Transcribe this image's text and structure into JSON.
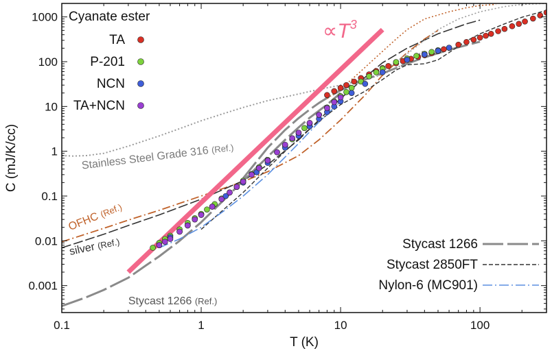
{
  "chart_data": {
    "type": "scatter",
    "title": "",
    "xlabel": "T  (K)",
    "ylabel": "C  (mJ/K/cc)",
    "xscale": "log",
    "yscale": "log",
    "xlim": [
      0.1,
      300
    ],
    "ylim": [
      0.00025,
      2000
    ],
    "x_ticks": [
      {
        "value": 0.1,
        "label": "0.1"
      },
      {
        "value": 1,
        "label": "1"
      },
      {
        "value": 10,
        "label": "10"
      },
      {
        "value": 100,
        "label": "100"
      }
    ],
    "y_ticks": [
      {
        "value": 0.001,
        "label": "0.001"
      },
      {
        "value": 0.01,
        "label": "0.01"
      },
      {
        "value": 0.1,
        "label": "0.1"
      },
      {
        "value": 1,
        "label": "1"
      },
      {
        "value": 10,
        "label": "10"
      },
      {
        "value": 100,
        "label": "100"
      },
      {
        "value": 1000,
        "label": "1000"
      }
    ],
    "legend_title": "Cyanate ester",
    "legend_placement": "top-left",
    "scatter_series": [
      {
        "name": "TA",
        "color": "#d93025",
        "x": [
          8,
          9,
          10,
          11,
          12.5,
          14,
          16,
          18,
          20,
          22,
          25,
          28,
          32,
          36,
          40,
          45,
          50,
          55,
          60,
          70,
          80,
          90,
          100,
          110,
          120,
          135,
          150,
          170,
          190,
          210,
          240,
          270,
          300
        ],
        "y": [
          18,
          22,
          26,
          30,
          36,
          43,
          52,
          62,
          72,
          80,
          92,
          103,
          116,
          128,
          140,
          155,
          172,
          190,
          205,
          240,
          275,
          310,
          345,
          380,
          420,
          480,
          540,
          620,
          700,
          790,
          920,
          1080,
          1250
        ]
      },
      {
        "name": "P-201",
        "color": "#7dd23c",
        "x": [
          0.45,
          0.5,
          0.55,
          0.6,
          0.7,
          0.8,
          0.9,
          1,
          1.1,
          1.25,
          1.4,
          1.6,
          1.8,
          2,
          2.3,
          2.6,
          3,
          3.5,
          4,
          4.5,
          5,
          5.5,
          6,
          7,
          8,
          9,
          10,
          11,
          12,
          14,
          16,
          18,
          20,
          25,
          30,
          35,
          40,
          45,
          50
        ],
        "y": [
          0.007,
          0.009,
          0.011,
          0.013,
          0.018,
          0.025,
          0.032,
          0.04,
          0.05,
          0.066,
          0.088,
          0.12,
          0.16,
          0.22,
          0.31,
          0.44,
          0.64,
          0.95,
          1.35,
          1.85,
          2.5,
          3.3,
          4.2,
          6.5,
          9.5,
          13,
          17,
          21,
          26,
          36,
          47,
          58,
          70,
          98,
          118,
          135,
          150,
          165,
          180
        ]
      },
      {
        "name": "NCN",
        "color": "#3f5ed8",
        "x": [
          0.5,
          0.6,
          0.7,
          0.8,
          1,
          1.2,
          1.5,
          2,
          2.5,
          3,
          4,
          5,
          6,
          7,
          8,
          9,
          10,
          12,
          15,
          20,
          30,
          40,
          50,
          60
        ],
        "y": [
          0.008,
          0.012,
          0.016,
          0.022,
          0.038,
          0.058,
          0.1,
          0.2,
          0.34,
          0.55,
          1.2,
          2.2,
          3.6,
          5.3,
          7.5,
          10,
          13,
          20,
          32,
          58,
          110,
          145,
          175,
          205
        ]
      },
      {
        "name": "TA+NCN",
        "color": "#9a3fd2",
        "x": [
          0.5,
          0.55,
          0.6,
          0.7,
          0.8,
          0.9,
          1,
          1.2,
          1.4,
          1.6,
          1.8,
          2,
          2.3,
          2.6,
          3,
          3.5,
          4,
          4.5,
          5,
          6,
          7,
          8,
          9,
          10
        ],
        "y": [
          0.008,
          0.0095,
          0.011,
          0.016,
          0.022,
          0.03,
          0.038,
          0.058,
          0.085,
          0.12,
          0.16,
          0.21,
          0.3,
          0.42,
          0.62,
          0.95,
          1.4,
          1.95,
          2.6,
          4.3,
          6.5,
          9.2,
          12.5,
          16
        ]
      }
    ],
    "line_series": [
      {
        "name": "Stainless Steel Grade 316",
        "color": "#9a9a9a",
        "dash": "2,3",
        "width": 2,
        "x": [
          0.1,
          0.12,
          0.15,
          0.2,
          0.3,
          0.5,
          0.7,
          1,
          1.5,
          2,
          3,
          5,
          7,
          10,
          15,
          20,
          30,
          40
        ],
        "y": [
          0.8,
          0.78,
          0.8,
          0.9,
          1.3,
          2.2,
          3.2,
          4.8,
          7.2,
          9.5,
          13.5,
          19,
          24,
          30,
          40,
          52,
          95,
          180
        ]
      },
      {
        "name": "OFHC",
        "color": "#c0622a",
        "dash": "12,4,2,4",
        "width": 1.8,
        "x": [
          0.1,
          0.2,
          0.3,
          0.5,
          1,
          2,
          3,
          5,
          7,
          10,
          15,
          20,
          30,
          40,
          50
        ],
        "y": [
          0.0095,
          0.019,
          0.029,
          0.048,
          0.1,
          0.21,
          0.35,
          0.8,
          1.8,
          5,
          18,
          50,
          160,
          320,
          500
        ]
      },
      {
        "name": "silver",
        "color": "#333333",
        "dash": "14,4",
        "width": 1.6,
        "x": [
          0.1,
          0.2,
          0.3,
          0.5,
          1,
          2,
          3,
          5,
          7,
          10,
          15,
          20,
          30,
          50,
          80,
          100
        ],
        "y": [
          0.007,
          0.014,
          0.022,
          0.038,
          0.085,
          0.22,
          0.5,
          1.8,
          5,
          15,
          45,
          95,
          200,
          420,
          700,
          850
        ]
      },
      {
        "name": "Stycast 1266 (Ref.)",
        "color": "#8a8a8a",
        "dash": "32,6",
        "width": 3,
        "x": [
          0.1,
          0.15,
          0.2,
          0.3,
          0.4,
          0.5,
          0.7,
          1,
          1.5,
          2,
          3,
          4,
          5,
          6,
          8,
          10
        ],
        "y": [
          0.00035,
          0.00055,
          0.0008,
          0.0015,
          0.0028,
          0.0045,
          0.01,
          0.026,
          0.09,
          0.22,
          0.75,
          1.8,
          3.4,
          5.6,
          11,
          20
        ]
      },
      {
        "name": "Stycast 1266",
        "color": "#8a8a8a",
        "dash": "30,6",
        "width": 3,
        "x": [
          2,
          3,
          4,
          5,
          6,
          7,
          8,
          10,
          12,
          15,
          20,
          30,
          40,
          50,
          70,
          100
        ],
        "y": [
          0.25,
          1.2,
          3,
          5.5,
          8.5,
          12,
          15.5,
          23,
          30,
          40,
          55,
          90,
          125,
          155,
          210,
          280
        ]
      },
      {
        "name": "Stycast 2850FT",
        "color": "#333333",
        "dash": "6,3",
        "width": 1.4,
        "x": [
          1,
          1.5,
          2,
          3,
          4,
          5,
          6,
          8,
          10,
          12,
          15,
          20,
          25,
          30,
          40,
          50,
          60,
          80,
          100,
          150,
          200,
          300
        ],
        "y": [
          0.018,
          0.055,
          0.12,
          0.42,
          1,
          1.9,
          3.2,
          6.5,
          11,
          15,
          22,
          40,
          65,
          85,
          90,
          110,
          160,
          290,
          420,
          700,
          980,
          1400
        ]
      },
      {
        "name": "Nylon-6 (MC901)",
        "color": "#5b8fe0",
        "dash": "14,4,2,4",
        "width": 1.6,
        "x": [
          0.5,
          0.7,
          1,
          1.5,
          2,
          3,
          5,
          7,
          10
        ],
        "y": [
          0.007,
          0.011,
          0.02,
          0.05,
          0.1,
          0.3,
          1.5,
          4.5,
          13
        ]
      },
      {
        "name": "upper dotted",
        "color": "#c0622a",
        "dash": "2,3",
        "width": 1.6,
        "x": [
          8,
          10,
          12,
          15,
          20,
          25,
          30,
          40,
          60,
          80,
          100,
          130
        ],
        "y": [
          15,
          25,
          40,
          75,
          170,
          320,
          520,
          900,
          1300,
          1600,
          1800,
          1900
        ]
      },
      {
        "name": "upper dashed",
        "color": "#9a9a9a",
        "dash": "2,3",
        "width": 1.6,
        "x": [
          20,
          30,
          40,
          50,
          70,
          100,
          150,
          200,
          300
        ],
        "y": [
          60,
          150,
          300,
          520,
          900,
          1300,
          1700,
          1900,
          2000
        ]
      }
    ],
    "t3_line": {
      "label_prefix": "∝T",
      "label_sup": "3",
      "color": "#f2678a",
      "x": [
        0.3,
        20
      ],
      "y": [
        0.002,
        520
      ]
    },
    "lower_legend": [
      {
        "label": "Stycast 1266",
        "color": "#8a8a8a",
        "dash": "30,6",
        "width": 3
      },
      {
        "label": "Stycast 2850FT",
        "color": "#333333",
        "dash": "6,3",
        "width": 1.4
      },
      {
        "label": "Nylon-6 (MC901)",
        "color": "#5b8fe0",
        "dash": "14,4,2,4",
        "width": 1.6
      }
    ],
    "annotations": [
      {
        "text": "Stainless Steel Grade 316",
        "ref": "(Ref.)",
        "color": "#7a7a7a",
        "x": 0.14,
        "y": 0.4,
        "rotate": -7
      },
      {
        "text": "OFHC",
        "ref": "(Ref.)",
        "color": "#c0622a",
        "x": 0.115,
        "y": 0.017,
        "rotate": -22
      },
      {
        "text": "silver",
        "ref": "(Ref.)",
        "color": "#333333",
        "x": 0.115,
        "y": 0.0048,
        "rotate": -12
      },
      {
        "text": "Stycast 1266",
        "ref": "(Ref.)",
        "color": "#555555",
        "x": 0.3,
        "y": 0.00038,
        "rotate": 0
      }
    ]
  }
}
